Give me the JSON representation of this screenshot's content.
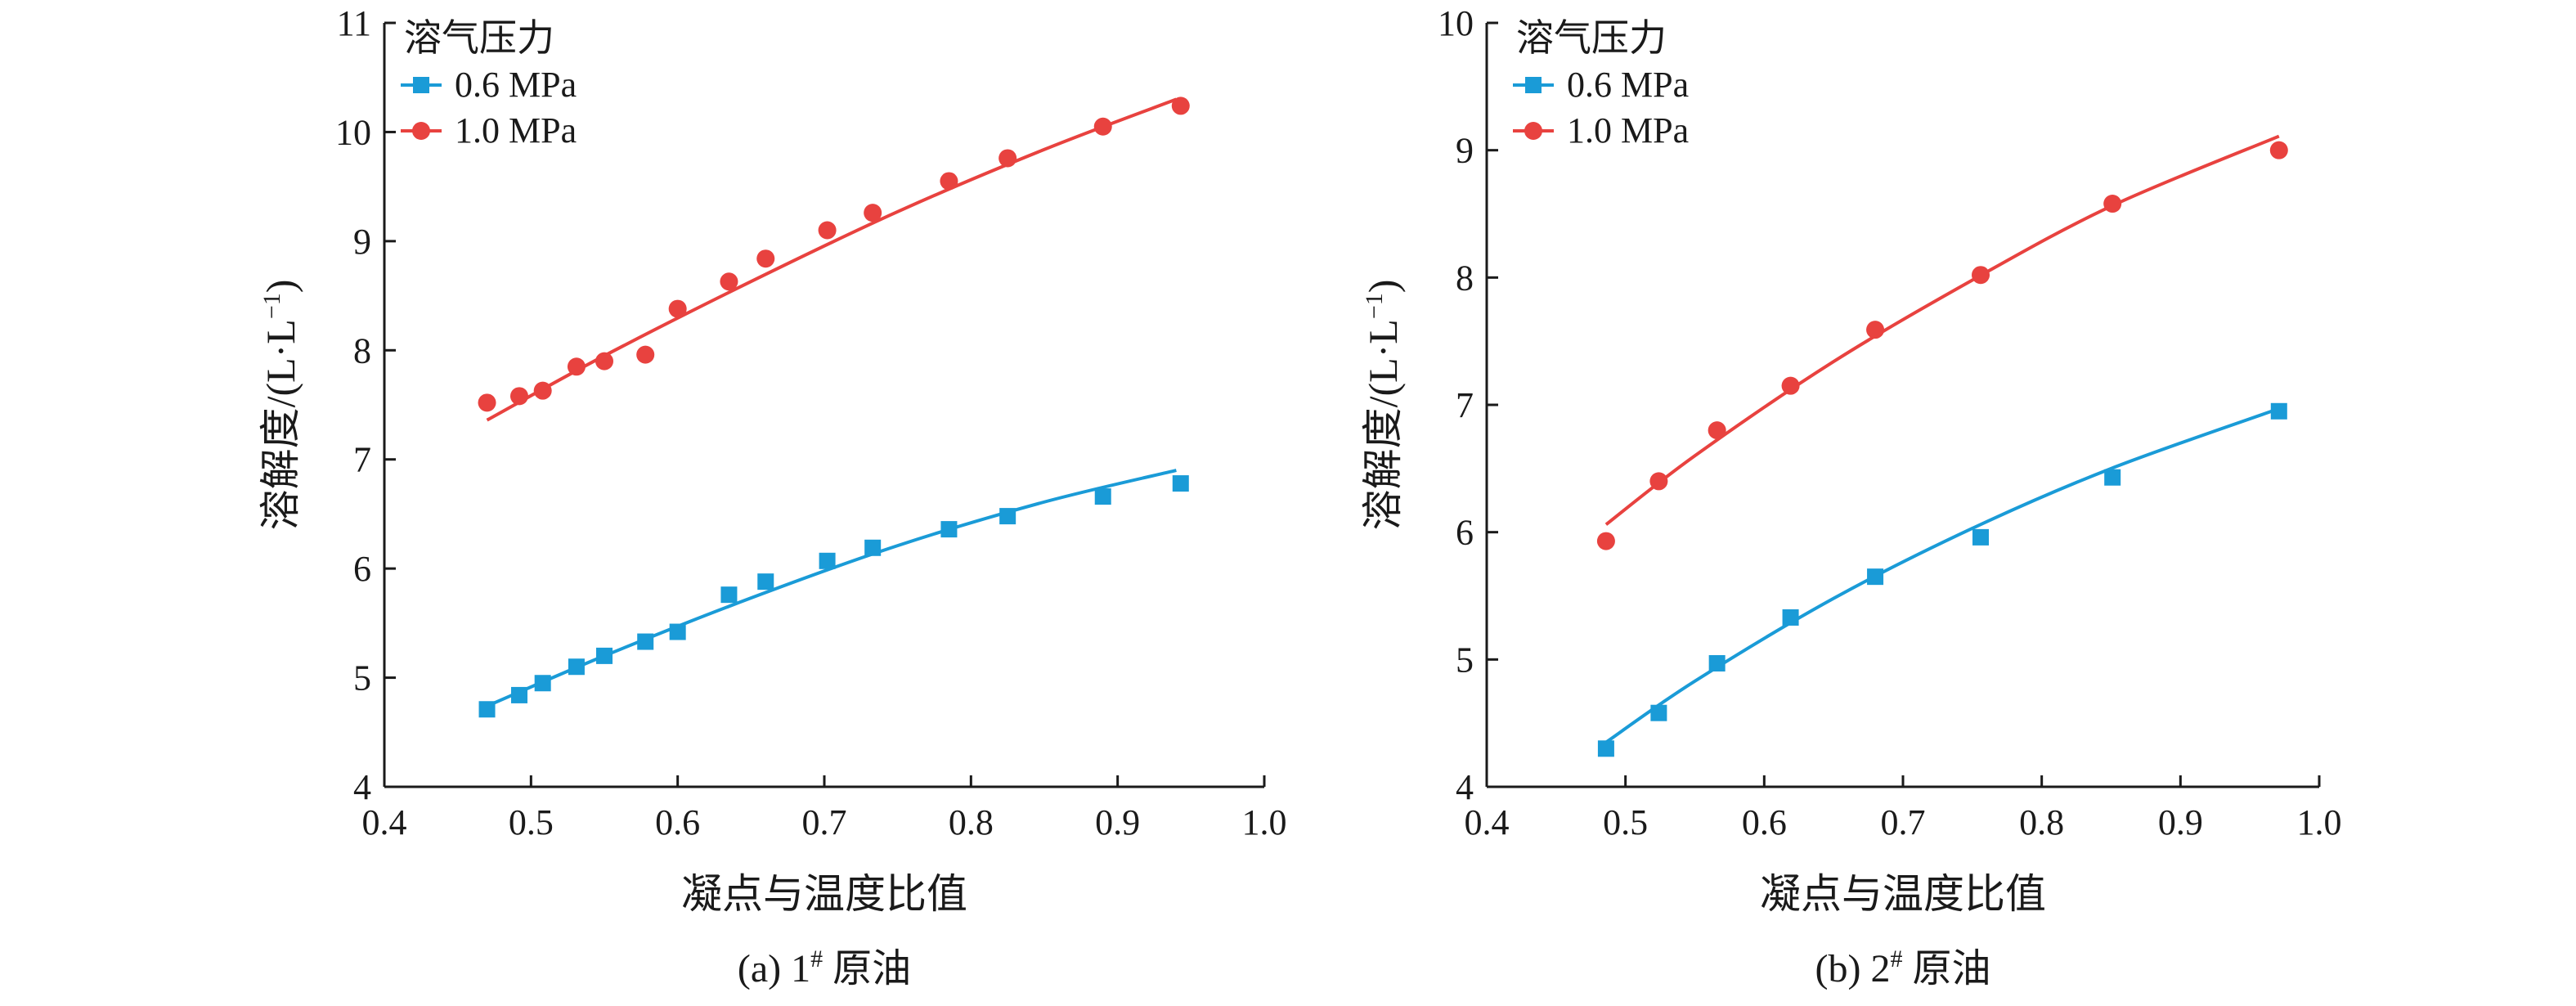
{
  "colors": {
    "series_0_6": "#1a9bd7",
    "series_1_0": "#e8423f",
    "axis": "#1a1a1a"
  },
  "chart_data": [
    {
      "type": "scatter",
      "caption": "(a) 1# 原油",
      "caption_prefix": "(a) 1",
      "caption_sup": "#",
      "caption_suffix": " 原油",
      "xlabel": "凝点与温度比值",
      "ylabel": "溶解度/(L·L",
      "ylabel_sup": "−1",
      "ylabel_end": ")",
      "xlim": [
        0.4,
        1.0
      ],
      "ylim": [
        4,
        11
      ],
      "xticks": [
        "0.4",
        "0.5",
        "0.6",
        "0.7",
        "0.8",
        "0.9",
        "1.0"
      ],
      "yticks": [
        "4",
        "5",
        "6",
        "7",
        "8",
        "9",
        "10",
        "11"
      ],
      "grid": false,
      "legend_title": "溶气压力",
      "legend_position": "top-left",
      "series": [
        {
          "name": "0.6 MPa",
          "marker": "square",
          "points": [
            [
              0.47,
              4.71
            ],
            [
              0.492,
              4.84
            ],
            [
              0.508,
              4.95
            ],
            [
              0.531,
              5.1
            ],
            [
              0.55,
              5.2
            ],
            [
              0.578,
              5.33
            ],
            [
              0.6,
              5.42
            ],
            [
              0.635,
              5.76
            ],
            [
              0.66,
              5.88
            ],
            [
              0.702,
              6.07
            ],
            [
              0.733,
              6.19
            ],
            [
              0.785,
              6.36
            ],
            [
              0.825,
              6.48
            ],
            [
              0.89,
              6.66
            ],
            [
              0.943,
              6.78
            ]
          ],
          "fit": [
            [
              0.47,
              4.74
            ],
            [
              0.55,
              5.2
            ],
            [
              0.65,
              5.73
            ],
            [
              0.75,
              6.21
            ],
            [
              0.85,
              6.61
            ],
            [
              0.94,
              6.9
            ]
          ]
        },
        {
          "name": "1.0 MPa",
          "marker": "circle",
          "points": [
            [
              0.47,
              7.52
            ],
            [
              0.492,
              7.58
            ],
            [
              0.508,
              7.63
            ],
            [
              0.531,
              7.85
            ],
            [
              0.55,
              7.9
            ],
            [
              0.578,
              7.96
            ],
            [
              0.6,
              8.38
            ],
            [
              0.635,
              8.63
            ],
            [
              0.66,
              8.84
            ],
            [
              0.702,
              9.1
            ],
            [
              0.733,
              9.26
            ],
            [
              0.785,
              9.55
            ],
            [
              0.825,
              9.76
            ],
            [
              0.89,
              10.05
            ],
            [
              0.943,
              10.24
            ]
          ],
          "fit": [
            [
              0.47,
              7.36
            ],
            [
              0.55,
              7.95
            ],
            [
              0.65,
              8.63
            ],
            [
              0.75,
              9.27
            ],
            [
              0.85,
              9.84
            ],
            [
              0.94,
              10.3
            ]
          ]
        }
      ]
    },
    {
      "type": "scatter",
      "caption": "(b) 2# 原油",
      "caption_prefix": "(b) 2",
      "caption_sup": "#",
      "caption_suffix": " 原油",
      "xlabel": "凝点与温度比值",
      "ylabel": "溶解度/(L·L",
      "ylabel_sup": "−1",
      "ylabel_end": ")",
      "xlim": [
        0.4,
        1.0
      ],
      "ylim": [
        4,
        10
      ],
      "xticks": [
        "0.4",
        "0.5",
        "0.6",
        "0.7",
        "0.8",
        "0.9",
        "1.0"
      ],
      "yticks": [
        "4",
        "5",
        "6",
        "7",
        "8",
        "9",
        "10"
      ],
      "grid": false,
      "legend_title": "溶气压力",
      "legend_position": "top-left",
      "series": [
        {
          "name": "0.6 MPa",
          "marker": "square",
          "points": [
            [
              0.486,
              4.3
            ],
            [
              0.524,
              4.58
            ],
            [
              0.566,
              4.97
            ],
            [
              0.619,
              5.33
            ],
            [
              0.68,
              5.65
            ],
            [
              0.756,
              5.96
            ],
            [
              0.851,
              6.43
            ],
            [
              0.971,
              6.95
            ]
          ],
          "fit": [
            [
              0.486,
              4.35
            ],
            [
              0.55,
              4.83
            ],
            [
              0.65,
              5.48
            ],
            [
              0.75,
              6.03
            ],
            [
              0.85,
              6.5
            ],
            [
              0.971,
              6.97
            ]
          ]
        },
        {
          "name": "1.0 MPa",
          "marker": "circle",
          "points": [
            [
              0.486,
              5.93
            ],
            [
              0.524,
              6.4
            ],
            [
              0.566,
              6.8
            ],
            [
              0.619,
              7.15
            ],
            [
              0.68,
              7.59
            ],
            [
              0.756,
              8.02
            ],
            [
              0.851,
              8.58
            ],
            [
              0.971,
              9.0
            ]
          ],
          "fit": [
            [
              0.486,
              6.06
            ],
            [
              0.55,
              6.6
            ],
            [
              0.65,
              7.34
            ],
            [
              0.75,
              7.98
            ],
            [
              0.85,
              8.56
            ],
            [
              0.971,
              9.11
            ]
          ]
        }
      ]
    }
  ]
}
